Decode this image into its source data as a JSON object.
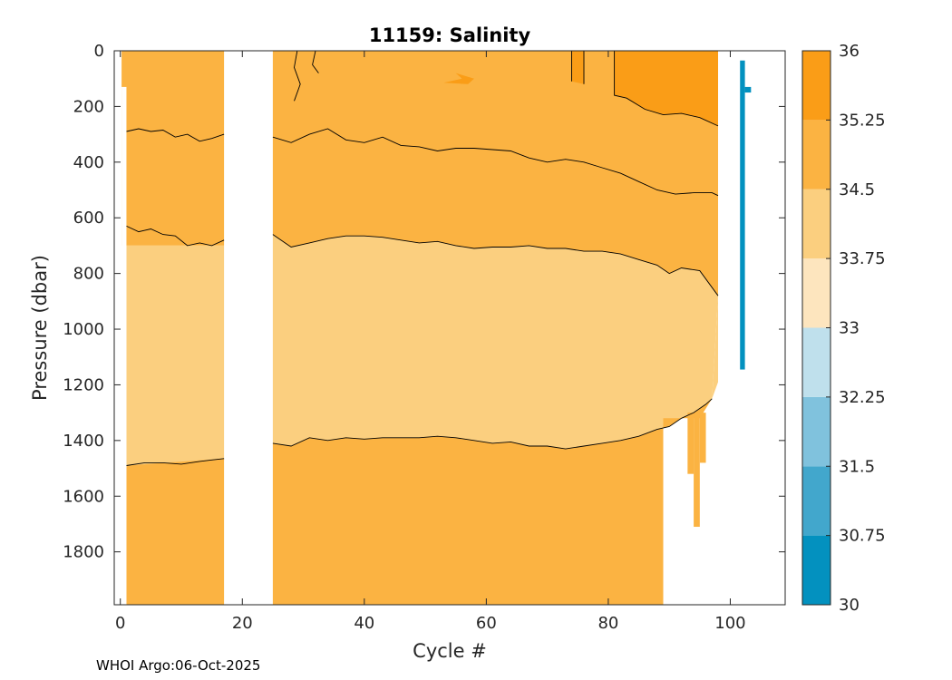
{
  "chart_data": {
    "type": "heatmap",
    "title": "11159:  Salinity",
    "xlabel": "Cycle #",
    "ylabel": "Pressure (dbar)",
    "xlim": [
      -1,
      109
    ],
    "ylim": [
      0,
      1990
    ],
    "y_reversed": true,
    "xticks": [
      0,
      20,
      40,
      60,
      80,
      100
    ],
    "yticks": [
      0,
      200,
      400,
      600,
      800,
      1000,
      1200,
      1400,
      1600,
      1800
    ],
    "colorbar": {
      "ticks": [
        "30",
        "30.75",
        "31.5",
        "32.25",
        "33",
        "33.75",
        "34.5",
        "35.25",
        "36"
      ],
      "levels": [
        30,
        30.75,
        31.5,
        32.25,
        33,
        33.75,
        34.5,
        35.25,
        36
      ],
      "colors": [
        "#0391bf",
        "#42a7cc",
        "#80c2dd",
        "#bfe0ec",
        "#fde5be",
        "#fbcf7f",
        "#fbb342",
        "#fa9d17"
      ]
    },
    "data_gaps": [
      {
        "cycles": [
          17,
          25
        ],
        "description": "no data"
      },
      {
        "cycles": [
          98,
          109
        ],
        "pressure_range": [
          0,
          1200
        ]
      }
    ],
    "regions": [
      {
        "name": "surface high salinity",
        "cycles": [
          81,
          98
        ],
        "pressure_range": [
          0,
          280
        ],
        "salinity_band": "35.25-36"
      },
      {
        "name": "upper layer",
        "cycles": [
          1,
          98
        ],
        "pressure_range": [
          0,
          700
        ],
        "salinity_band": "34.5-35.25"
      },
      {
        "name": "intermediate layer",
        "cycles": [
          1,
          98
        ],
        "pressure_range": [
          700,
          1450
        ],
        "salinity_band": "33.75-34.5"
      },
      {
        "name": "deep layer",
        "cycles": [
          1,
          89
        ],
        "pressure_range": [
          1450,
          1990
        ],
        "salinity_band": "34.5-35.25"
      }
    ],
    "contours": [
      {
        "level": 34.5,
        "points": [
          [
            1,
            290
          ],
          [
            3,
            280
          ],
          [
            5,
            290
          ],
          [
            7,
            285
          ],
          [
            9,
            310
          ],
          [
            11,
            300
          ],
          [
            13,
            325
          ],
          [
            15,
            315
          ],
          [
            17,
            300
          ],
          [
            25,
            310
          ],
          [
            28,
            330
          ],
          [
            31,
            300
          ],
          [
            34,
            280
          ],
          [
            37,
            320
          ],
          [
            40,
            330
          ],
          [
            43,
            310
          ],
          [
            46,
            340
          ],
          [
            49,
            345
          ],
          [
            52,
            360
          ],
          [
            55,
            350
          ],
          [
            58,
            350
          ],
          [
            61,
            355
          ],
          [
            64,
            360
          ],
          [
            67,
            385
          ],
          [
            70,
            400
          ],
          [
            73,
            390
          ],
          [
            76,
            400
          ],
          [
            79,
            420
          ],
          [
            82,
            440
          ],
          [
            85,
            470
          ],
          [
            88,
            500
          ],
          [
            91,
            515
          ],
          [
            94,
            510
          ],
          [
            97,
            510
          ],
          [
            98,
            520
          ]
        ]
      },
      {
        "level": 34.0,
        "points": [
          [
            1,
            630
          ],
          [
            3,
            650
          ],
          [
            5,
            640
          ],
          [
            7,
            660
          ],
          [
            9,
            665
          ],
          [
            11,
            700
          ],
          [
            13,
            690
          ],
          [
            15,
            700
          ],
          [
            17,
            680
          ],
          [
            25,
            660
          ],
          [
            28,
            705
          ],
          [
            31,
            690
          ],
          [
            34,
            675
          ],
          [
            37,
            665
          ],
          [
            40,
            665
          ],
          [
            43,
            670
          ],
          [
            46,
            680
          ],
          [
            49,
            690
          ],
          [
            52,
            685
          ],
          [
            55,
            700
          ],
          [
            58,
            710
          ],
          [
            61,
            705
          ],
          [
            64,
            705
          ],
          [
            67,
            700
          ],
          [
            70,
            710
          ],
          [
            73,
            710
          ],
          [
            76,
            720
          ],
          [
            79,
            720
          ],
          [
            82,
            730
          ],
          [
            85,
            750
          ],
          [
            88,
            770
          ],
          [
            90,
            800
          ],
          [
            92,
            780
          ],
          [
            95,
            790
          ],
          [
            98,
            880
          ]
        ]
      },
      {
        "level": 34.5,
        "points": [
          [
            1,
            1490
          ],
          [
            4,
            1480
          ],
          [
            7,
            1480
          ],
          [
            10,
            1485
          ],
          [
            13,
            1475
          ],
          [
            15,
            1470
          ],
          [
            17,
            1465
          ],
          [
            25,
            1410
          ],
          [
            28,
            1420
          ],
          [
            31,
            1390
          ],
          [
            34,
            1400
          ],
          [
            37,
            1390
          ],
          [
            40,
            1395
          ],
          [
            43,
            1390
          ],
          [
            46,
            1390
          ],
          [
            49,
            1390
          ],
          [
            52,
            1385
          ],
          [
            55,
            1390
          ],
          [
            58,
            1400
          ],
          [
            61,
            1410
          ],
          [
            64,
            1405
          ],
          [
            67,
            1420
          ],
          [
            70,
            1420
          ],
          [
            73,
            1430
          ],
          [
            76,
            1420
          ],
          [
            79,
            1410
          ],
          [
            82,
            1400
          ],
          [
            85,
            1385
          ],
          [
            88,
            1360
          ],
          [
            90,
            1350
          ],
          [
            92,
            1320
          ],
          [
            94,
            1300
          ],
          [
            96,
            1270
          ],
          [
            97,
            1250
          ]
        ]
      }
    ],
    "single_profile": {
      "cycle": 102,
      "pressure_range": [
        35,
        1145
      ],
      "salinity_band": "30-30.75"
    }
  },
  "footer": {
    "text": "WHOI Argo:06-Oct-2025"
  }
}
